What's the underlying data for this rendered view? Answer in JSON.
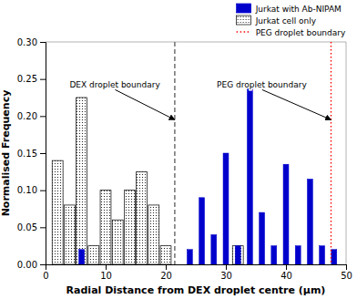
{
  "chart_data": {
    "type": "bar",
    "xlabel": "Radial Distance from DEX droplet centre (μm)",
    "ylabel": "Normalised Frequency",
    "xlim": [
      0,
      50
    ],
    "ylim": [
      0,
      0.3
    ],
    "xticks": [
      0,
      10,
      20,
      30,
      40,
      50
    ],
    "yticks": [
      {
        "value": 0.0,
        "label": "0.00"
      },
      {
        "value": 0.05,
        "label": "0.05"
      },
      {
        "value": 0.1,
        "label": "0.10"
      },
      {
        "value": 0.15,
        "label": "0.15"
      },
      {
        "value": 0.2,
        "label": "0.20"
      },
      {
        "value": 0.25,
        "label": "0.25"
      },
      {
        "value": 0.3,
        "label": "0.30"
      }
    ],
    "legend": "upper right",
    "series": [
      {
        "name": "Jurkat cell only",
        "color": "#000000",
        "x": [
          2,
          4,
          6,
          8,
          10,
          12,
          14,
          16,
          18,
          20,
          24,
          26,
          28,
          30,
          32,
          34,
          36,
          38,
          40,
          42,
          44,
          46,
          48
        ],
        "values": [
          0.14,
          0.08,
          0.225,
          0.025,
          0.1,
          0.06,
          0.1,
          0.125,
          0.08,
          0.025,
          0.0,
          0.0,
          0.0,
          0.0,
          0.025,
          0.0,
          0.0,
          0.0,
          0.0,
          0.0,
          0.0,
          0.0,
          0.0
        ]
      },
      {
        "name": "Jurkat with Ab-NIPAM",
        "color": "#0000CC",
        "x": [
          2,
          4,
          6,
          8,
          10,
          12,
          14,
          16,
          18,
          20,
          24,
          26,
          28,
          30,
          32,
          34,
          36,
          38,
          40,
          42,
          44,
          46,
          48
        ],
        "values": [
          0.0,
          0.0,
          0.02,
          0.0,
          0.0,
          0.0,
          0.0,
          0.0,
          0.0,
          0.0,
          0.02,
          0.09,
          0.04,
          0.15,
          0.025,
          0.245,
          0.07,
          0.025,
          0.135,
          0.025,
          0.115,
          0.025,
          0.02
        ]
      }
    ],
    "reference_lines": [
      {
        "x": 21.5,
        "color": "#666666",
        "line_style": "dashed"
      },
      {
        "x": 47.5,
        "color": "#FF0000",
        "line_style": "dotted",
        "name": "PEG droplet boundary"
      }
    ],
    "annotations": [
      {
        "text": "DEX droplet boundary",
        "x": 21.5,
        "y": 0.195,
        "text_x": 4.0,
        "text_y": 0.238
      },
      {
        "text": "PEG droplet boundary",
        "x": 47.5,
        "y": 0.195,
        "text_x": 28.5,
        "text_y": 0.238
      }
    ]
  }
}
